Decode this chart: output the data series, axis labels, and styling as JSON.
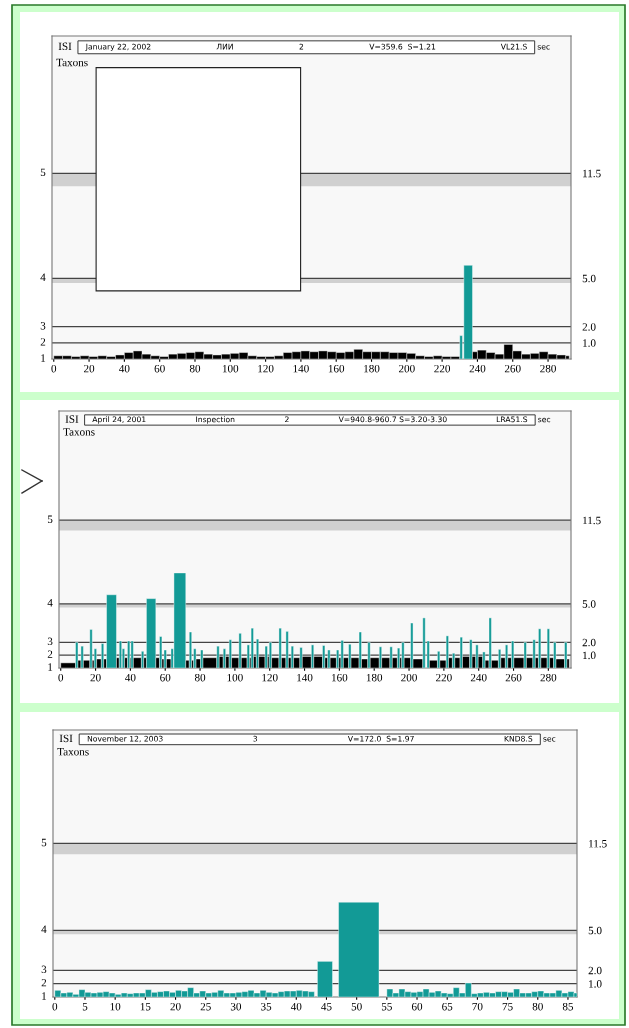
{
  "chart_data": [
    {
      "type": "histogram",
      "ylabel": "Taxons",
      "annotations": [
        "ISI",
        "January 22, 2002",
        "ЛИИ",
        "2",
        "V=359.6  S=1.21",
        "VL21.S",
        "sec",
        "1",
        "2",
        "3",
        "4",
        "5"
      ],
      "xlim": [
        -1,
        293
      ],
      "xticks": [
        0,
        20,
        40,
        60,
        80,
        100,
        120,
        140,
        160,
        180,
        200,
        220,
        240,
        260,
        280
      ],
      "ylim": [
        0,
        20
      ],
      "yticks": [
        {
          "value": 1,
          "label": "1.0"
        },
        {
          "value": 2,
          "label": "2.0"
        },
        {
          "value": 5,
          "label": "5.0"
        },
        {
          "value": 11.5,
          "label": "11.5"
        }
      ],
      "ref_lines": [
        {
          "axis": "y",
          "value": 1
        },
        {
          "axis": "y",
          "value": 2
        },
        {
          "axis": "y",
          "value": 5
        },
        {
          "axis": "y",
          "value": 11.5
        }
      ],
      "bands": [
        {
          "axis": "y",
          "from": 10.7,
          "to": 11.5,
          "color": "#d0d0d0"
        },
        {
          "axis": "y",
          "from": 4.7,
          "to": 5.0,
          "color": "#d0d0d0"
        }
      ],
      "bins": [
        0,
        5,
        10,
        15,
        20,
        25,
        30,
        35,
        40,
        45,
        50,
        55,
        60,
        65,
        70,
        75,
        80,
        85,
        90,
        95,
        100,
        105,
        110,
        115,
        120,
        125,
        130,
        135,
        140,
        145,
        150,
        155,
        160,
        165,
        170,
        175,
        180,
        185,
        190,
        195,
        200,
        205,
        210,
        215,
        220,
        225,
        230,
        231.5,
        232.3,
        237.2,
        240,
        245,
        250,
        255,
        260,
        265,
        270,
        275,
        280,
        285,
        290,
        292
      ],
      "values": [
        0.2,
        0.2,
        0.15,
        0.2,
        0.15,
        0.2,
        0.15,
        0.25,
        0.4,
        0.5,
        0.3,
        0.2,
        0.15,
        0.3,
        0.35,
        0.4,
        0.45,
        0.3,
        0.25,
        0.3,
        0.35,
        0.4,
        0.2,
        0.15,
        0.15,
        0.2,
        0.4,
        0.45,
        0.5,
        0.45,
        0.5,
        0.45,
        0.4,
        0.45,
        0.6,
        0.45,
        0.45,
        0.45,
        0.4,
        0.4,
        0.35,
        0.2,
        0.15,
        0.2,
        0.15,
        0.15,
        1.45,
        null,
        5.8,
        0.45,
        0.55,
        0.4,
        0.3,
        0.9,
        0.5,
        0.3,
        0.35,
        0.45,
        0.3,
        0.25,
        0.2
      ],
      "colors": [
        "#000000",
        "#000000",
        "#000000",
        "#000000",
        "#000000",
        "#000000",
        "#000000",
        "#000000",
        "#000000",
        "#000000",
        "#000000",
        "#000000",
        "#000000",
        "#000000",
        "#000000",
        "#000000",
        "#000000",
        "#000000",
        "#000000",
        "#000000",
        "#000000",
        "#000000",
        "#000000",
        "#000000",
        "#000000",
        "#000000",
        "#000000",
        "#000000",
        "#000000",
        "#000000",
        "#000000",
        "#000000",
        "#000000",
        "#000000",
        "#000000",
        "#000000",
        "#000000",
        "#000000",
        "#000000",
        "#000000",
        "#000000",
        "#000000",
        "#000000",
        "#000000",
        "#000000",
        "#000000",
        "#129a96",
        "#129a96",
        "#129a96",
        "#000000",
        "#000000",
        "#000000",
        "#000000",
        "#000000",
        "#000000",
        "#000000",
        "#000000",
        "#000000",
        "#000000",
        "#000000",
        "#000000"
      ]
    },
    {
      "type": "histogram",
      "ylabel": "Taxons",
      "annotations": [
        "ISI",
        "April 24, 2001",
        "Inspection",
        "2",
        "V=940.8-960.7 S=3.20-3.30",
        "LRA51.S",
        "sec",
        "1",
        "2",
        "3",
        "4",
        "5"
      ],
      "xlim": [
        -1,
        293
      ],
      "xticks": [
        0,
        20,
        40,
        60,
        80,
        100,
        120,
        140,
        160,
        180,
        200,
        220,
        240,
        260,
        280
      ],
      "ylim": [
        0,
        20
      ],
      "yticks": [
        {
          "value": 1,
          "label": "1.0"
        },
        {
          "value": 2,
          "label": "2.0"
        },
        {
          "value": 5,
          "label": "5.0"
        },
        {
          "value": 11.5,
          "label": "11.5"
        }
      ],
      "ref_lines": [
        {
          "axis": "y",
          "value": 1
        },
        {
          "axis": "y",
          "value": 2
        },
        {
          "axis": "y",
          "value": 5
        },
        {
          "axis": "y",
          "value": 11.5
        }
      ],
      "bands": [
        {
          "axis": "y",
          "from": 10.7,
          "to": 11.5,
          "color": "#d0d0d0"
        },
        {
          "axis": "y",
          "from": 4.7,
          "to": 5.0,
          "color": "#d0d0d0"
        }
      ],
      "bins": [
        0,
        8.5,
        9.9,
        11.6,
        13.0,
        16.7,
        18.1,
        19.2,
        20.6,
        23.3,
        24.7,
        26.3,
        32,
        33.6,
        35.0,
        35.3,
        36.7,
        38.3,
        39.7,
        40.3,
        41.7,
        46.3,
        47.7,
        49.2,
        54.6,
        56.7,
        58.1,
        59.3,
        60.7,
        63.3,
        64.7,
        65,
        71.8,
        73.8,
        75.2,
        76.3,
        77.7,
        80.3,
        81.7,
        89.6,
        91.0,
        93.3,
        94.7,
        96.7,
        98.1,
        102.3,
        103.7,
        107.0,
        108.4,
        109.3,
        110.7,
        112.3,
        113.7,
        117.3,
        118.7,
        119.7,
        121.1,
        125.3,
        126.7,
        129.3,
        130.7,
        132.3,
        133.7,
        137.3,
        138.7,
        143.9,
        145.3,
        150.3,
        151.7,
        153.3,
        154.7,
        158.3,
        159.7,
        160.9,
        162.3,
        165.3,
        166.7,
        171.3,
        172.7,
        176.3,
        177.7,
        182.9,
        184.3,
        189.0,
        190.4,
        193.3,
        194.7,
        195.8,
        197.2,
        200.9,
        202.3,
        207.9,
        209.3,
        210.3,
        211.7,
        216.3,
        217.7,
        221.3,
        222.7,
        224.9,
        226.3,
        229.3,
        230.7,
        234.8,
        236.2,
        238.3,
        239.7,
        242.3,
        243.7,
        245.9,
        247.3,
        251.3,
        252.7,
        255.3,
        256.7,
        258.8,
        260.2,
        266.0,
        267.4,
        271.1,
        272.5,
        274.3,
        275.7,
        279.3,
        280.7,
        283.0,
        284.4,
        289.3,
        290.7,
        292
      ],
      "values": [
        0.4,
        2.0,
        0.6,
        1.7,
        0.6,
        3.0,
        0.6,
        1.5,
        0.7,
        1.9,
        0.7,
        5.7,
        0.8,
        2.1,
        null,
        1.5,
        0.8,
        2.1,
        0.8,
        2.1,
        0.8,
        1.3,
        0.8,
        5.4,
        0.8,
        2.45,
        0.7,
        1.4,
        0.7,
        1.5,
        null,
        7.4,
        0.6,
        2.8,
        0.6,
        1.5,
        0.7,
        1.4,
        0.8,
        1.7,
        0.9,
        1.5,
        0.9,
        2.2,
        0.8,
        2.7,
        0.8,
        1.8,
        0.8,
        3.1,
        0.9,
        2.25,
        0.9,
        1.7,
        0.9,
        2.0,
        0.8,
        3.1,
        0.8,
        2.85,
        0.8,
        1.7,
        0.8,
        1.6,
        0.9,
        1.8,
        0.9,
        1.75,
        0.8,
        1.4,
        0.8,
        1.4,
        0.8,
        2.15,
        0.8,
        1.85,
        0.8,
        2.8,
        0.7,
        2.0,
        0.8,
        1.65,
        0.8,
        1.65,
        0.8,
        1.55,
        0.8,
        2.0,
        0.8,
        3.5,
        0.7,
        3.9,
        null,
        2.1,
        0.6,
        1.3,
        0.6,
        2.5,
        0.8,
        1.15,
        0.8,
        2.4,
        0.9,
        2.2,
        0.9,
        1.8,
        0.9,
        1.25,
        0.6,
        3.9,
        0.6,
        1.45,
        0.8,
        1.8,
        0.8,
        2.1,
        0.8,
        2.0,
        0.8,
        2.2,
        0.8,
        3.05,
        0.8,
        3.05,
        0.8,
        2.0,
        0.7,
        2.0,
        0.7
      ],
      "colors": [
        "#000000",
        "#129a96",
        "#000000",
        "#129a96",
        "#000000",
        "#129a96",
        "#000000",
        "#129a96",
        "#000000",
        "#129a96",
        "#000000",
        "#129a96",
        "#000000",
        "#129a96",
        "#000000",
        "#129a96",
        "#000000",
        "#129a96",
        "#000000",
        "#129a96",
        "#000000",
        "#129a96",
        "#000000",
        "#129a96",
        "#000000",
        "#129a96",
        "#000000",
        "#129a96",
        "#000000",
        "#129a96",
        "#000000",
        "#129a96",
        "#000000",
        "#129a96",
        "#000000",
        "#129a96",
        "#000000",
        "#129a96",
        "#000000",
        "#129a96",
        "#000000",
        "#129a96",
        "#000000",
        "#129a96",
        "#000000",
        "#129a96",
        "#000000",
        "#129a96",
        "#000000",
        "#129a96",
        "#000000",
        "#129a96",
        "#000000",
        "#129a96",
        "#000000",
        "#129a96",
        "#000000",
        "#129a96",
        "#000000",
        "#129a96",
        "#000000",
        "#129a96",
        "#000000",
        "#129a96",
        "#000000",
        "#129a96",
        "#000000",
        "#129a96",
        "#000000",
        "#129a96",
        "#000000",
        "#129a96",
        "#000000",
        "#129a96",
        "#000000",
        "#129a96",
        "#000000",
        "#129a96",
        "#000000",
        "#129a96",
        "#000000",
        "#129a96",
        "#000000",
        "#129a96",
        "#000000",
        "#129a96",
        "#000000",
        "#129a96",
        "#000000",
        "#129a96",
        "#000000",
        "#129a96",
        "#000000",
        "#129a96",
        "#000000",
        "#129a96",
        "#000000",
        "#129a96",
        "#000000",
        "#129a96",
        "#000000",
        "#129a96",
        "#000000",
        "#129a96",
        "#000000",
        "#129a96",
        "#000000",
        "#129a96",
        "#000000",
        "#129a96",
        "#000000",
        "#129a96",
        "#000000",
        "#129a96",
        "#000000",
        "#129a96",
        "#000000",
        "#129a96",
        "#000000",
        "#129a96",
        "#000000",
        "#129a96",
        "#000000",
        "#129a96",
        "#000000",
        "#129a96",
        "#000000",
        "#129a96",
        "#000000"
      ]
    },
    {
      "type": "histogram",
      "ylabel": "Taxons",
      "color": "#129a96",
      "annotations": [
        "ISI",
        "November 12, 2003",
        "3",
        "V=172.0  S=1.97",
        "KND8.S",
        "sec",
        "1",
        "2",
        "3",
        "4",
        "5"
      ],
      "xlim": [
        -0.3,
        86.5
      ],
      "xticks": [
        0,
        5,
        10,
        15,
        20,
        25,
        30,
        35,
        40,
        45,
        50,
        55,
        60,
        65,
        70,
        75,
        80,
        85
      ],
      "ylim": [
        0,
        20
      ],
      "yticks": [
        {
          "value": 1,
          "label": "1.0"
        },
        {
          "value": 2,
          "label": "2.0"
        },
        {
          "value": 5,
          "label": "5.0"
        },
        {
          "value": 11.5,
          "label": "11.5"
        }
      ],
      "ref_lines": [
        {
          "axis": "y",
          "value": 1
        },
        {
          "axis": "y",
          "value": 2
        },
        {
          "axis": "y",
          "value": 5
        },
        {
          "axis": "y",
          "value": 11.5
        }
      ],
      "bands": [
        {
          "axis": "y",
          "from": 10.7,
          "to": 11.5,
          "color": "#d0d0d0"
        },
        {
          "axis": "y",
          "from": 4.7,
          "to": 5.0,
          "color": "#d0d0d0"
        }
      ],
      "bins": [
        0,
        1,
        2,
        3,
        4,
        5,
        6,
        7,
        8,
        9,
        10,
        11,
        12,
        13,
        14,
        15,
        16,
        17,
        18,
        19,
        20,
        21,
        22,
        23,
        24,
        25,
        26,
        27,
        28,
        29,
        30,
        31,
        32,
        33,
        34,
        35,
        36,
        37,
        38,
        39,
        40,
        41,
        42,
        43,
        43.5,
        46,
        47,
        53.7,
        55,
        56,
        57,
        58,
        59,
        60,
        61,
        62,
        63,
        64,
        65,
        66,
        67,
        68,
        69,
        70,
        71,
        72,
        73,
        74,
        75,
        76,
        77,
        78,
        79,
        80,
        81,
        82,
        83,
        84,
        85,
        86,
        86.5
      ],
      "values": [
        0.5,
        0.3,
        0.35,
        0.2,
        0.55,
        0.35,
        0.3,
        0.35,
        0.4,
        0.3,
        0.2,
        0.3,
        0.25,
        0.3,
        0.3,
        0.55,
        0.35,
        0.4,
        0.45,
        0.35,
        0.5,
        0.45,
        0.7,
        0.3,
        0.45,
        0.3,
        0.35,
        0.5,
        0.3,
        0.3,
        0.35,
        0.4,
        0.5,
        0.3,
        0.5,
        0.35,
        0.3,
        0.4,
        0.45,
        0.45,
        0.5,
        0.45,
        0.4,
        null,
        2.67,
        null,
        7.1,
        null,
        0.6,
        0.3,
        0.6,
        0.4,
        0.35,
        0.4,
        0.6,
        0.35,
        0.45,
        0.3,
        0.25,
        0.7,
        0.3,
        1.05,
        0.25,
        0.3,
        0.35,
        0.3,
        0.4,
        0.4,
        0.35,
        0.6,
        0.3,
        0.3,
        0.4,
        0.45,
        0.3,
        0.3,
        0.5,
        0.3,
        0.4,
        0.3
      ]
    }
  ]
}
